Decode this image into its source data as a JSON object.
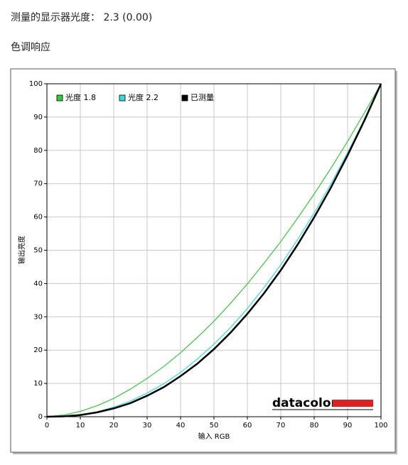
{
  "header": {
    "title": "测量的显示器光度： 2.3 (0.00)",
    "section": "色调响应"
  },
  "chart_data": {
    "type": "line",
    "x_label": "输入 RGB",
    "y_label": "输出亮度",
    "watermark": "datacolor",
    "x": [
      0,
      5,
      10,
      15,
      20,
      25,
      30,
      35,
      40,
      45,
      50,
      55,
      60,
      65,
      70,
      75,
      80,
      85,
      90,
      95,
      100
    ],
    "series": [
      {
        "name": "光度 1.8",
        "color": "#33cc33",
        "values": [
          0,
          0.5,
          1.6,
          3.3,
          5.5,
          8.3,
          11.5,
          15.1,
          19.2,
          23.8,
          28.7,
          34.1,
          39.9,
          46.1,
          52.6,
          59.6,
          66.9,
          74.6,
          82.7,
          91.2,
          100
        ]
      },
      {
        "name": "光度 2.2",
        "color": "#33dddd",
        "values": [
          0,
          0.1,
          0.6,
          1.5,
          2.9,
          4.7,
          7.1,
          9.9,
          13.3,
          17.3,
          21.8,
          26.8,
          32.5,
          38.8,
          45.6,
          53.1,
          61.2,
          69.9,
          79.3,
          89.3,
          100
        ]
      },
      {
        "name": "已测量",
        "color": "#000000",
        "values": [
          0,
          0.1,
          0.5,
          1.3,
          2.5,
          4.1,
          6.3,
          8.9,
          12.2,
          15.9,
          20.3,
          25.3,
          30.9,
          37.1,
          44.0,
          51.6,
          59.9,
          68.8,
          78.5,
          88.9,
          100
        ]
      }
    ],
    "xlim": [
      0,
      100
    ],
    "ylim": [
      0,
      100
    ],
    "xticks": [
      0,
      10,
      20,
      30,
      40,
      50,
      60,
      70,
      80,
      90,
      100
    ],
    "yticks": [
      0,
      10,
      20,
      30,
      40,
      50,
      60,
      70,
      80,
      90,
      100
    ],
    "grid": true,
    "legend": "top-left"
  }
}
